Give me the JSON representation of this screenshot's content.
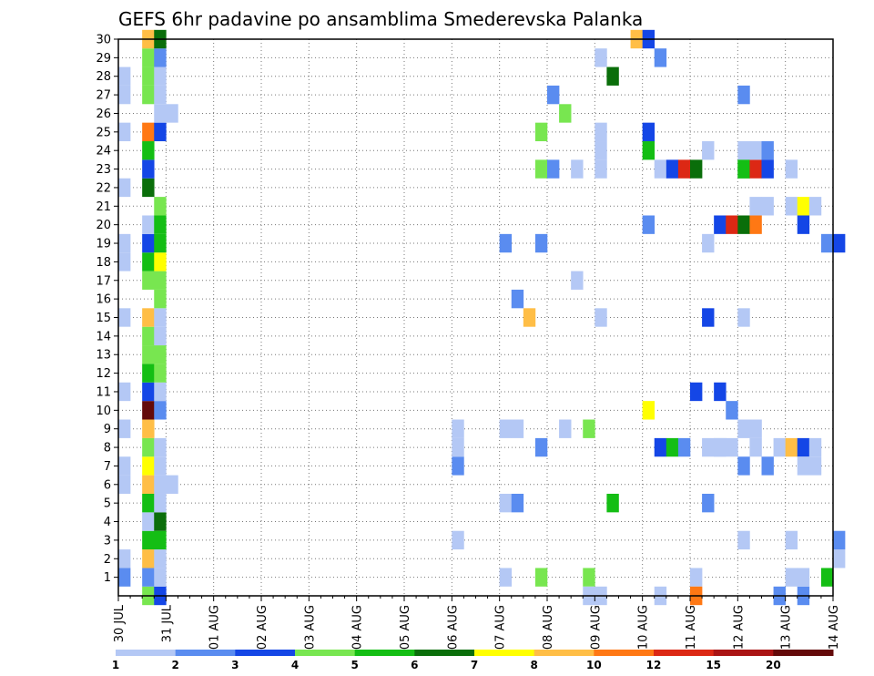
{
  "chart_data": {
    "type": "heatmap",
    "title": "GEFS 6hr padavine po ansamblima Smederevska Palanka",
    "x_tick_labels": [
      "30 JUL",
      "31 JUL",
      "01 AUG",
      "02 AUG",
      "03 AUG",
      "04 AUG",
      "05 AUG",
      "06 AUG",
      "07 AUG",
      "08 AUG",
      "09 AUG",
      "10 AUG",
      "11 AUG",
      "12 AUG",
      "13 AUG",
      "14 AUG"
    ],
    "x_unit": "6-hour step from 30 JUL 00Z",
    "x_range": [
      0,
      60
    ],
    "y_tick_labels": [
      "1",
      "2",
      "3",
      "4",
      "5",
      "6",
      "7",
      "8",
      "9",
      "10",
      "11",
      "12",
      "13",
      "14",
      "15",
      "16",
      "17",
      "18",
      "19",
      "20",
      "21",
      "22",
      "23",
      "24",
      "25",
      "26",
      "27",
      "28",
      "29",
      "30"
    ],
    "y_range": [
      0,
      30
    ],
    "grid": true,
    "colorbar": {
      "labels": [
        "1",
        "2",
        "3",
        "4",
        "5",
        "6",
        "7",
        "8",
        "10",
        "12",
        "15",
        "20"
      ],
      "colors": [
        "#b4c8f5",
        "#5a8cf0",
        "#1446e6",
        "#78e650",
        "#14be14",
        "#0a6e0a",
        "#ffff00",
        "#ffbe46",
        "#ff7814",
        "#dc2814",
        "#aa1414",
        "#640a0a"
      ]
    },
    "cells_note": "each cell: [time step, member, color index (0=#b4c8f5 ... 11=#640a0a)]",
    "cells": [
      [
        0,
        1,
        1
      ],
      [
        0,
        2,
        0
      ],
      [
        0,
        7,
        0
      ],
      [
        0,
        6,
        0
      ],
      [
        0,
        9,
        0
      ],
      [
        0,
        11,
        0
      ],
      [
        0,
        15,
        0
      ],
      [
        0,
        18,
        0
      ],
      [
        0,
        19,
        0
      ],
      [
        0,
        22,
        0
      ],
      [
        0,
        25,
        0
      ],
      [
        0,
        27,
        0
      ],
      [
        0,
        28,
        0
      ],
      [
        2,
        0,
        3
      ],
      [
        2,
        1,
        1
      ],
      [
        2,
        2,
        7
      ],
      [
        2,
        3,
        4
      ],
      [
        2,
        4,
        0
      ],
      [
        2,
        5,
        4
      ],
      [
        2,
        6,
        7
      ],
      [
        2,
        7,
        6
      ],
      [
        2,
        8,
        3
      ],
      [
        2,
        9,
        7
      ],
      [
        2,
        10,
        11
      ],
      [
        2,
        11,
        2
      ],
      [
        2,
        12,
        4
      ],
      [
        2,
        13,
        3
      ],
      [
        2,
        14,
        3
      ],
      [
        2,
        15,
        7
      ],
      [
        2,
        17,
        3
      ],
      [
        2,
        18,
        4
      ],
      [
        2,
        19,
        2
      ],
      [
        2,
        20,
        0
      ],
      [
        2,
        22,
        5
      ],
      [
        2,
        23,
        2
      ],
      [
        2,
        24,
        4
      ],
      [
        2,
        25,
        8
      ],
      [
        2,
        27,
        3
      ],
      [
        2,
        28,
        3
      ],
      [
        2,
        29,
        3
      ],
      [
        2,
        30,
        7
      ],
      [
        3,
        0,
        2
      ],
      [
        3,
        1,
        0
      ],
      [
        3,
        2,
        0
      ],
      [
        3,
        3,
        4
      ],
      [
        3,
        4,
        5
      ],
      [
        3,
        5,
        0
      ],
      [
        3,
        6,
        0
      ],
      [
        3,
        7,
        0
      ],
      [
        3,
        8,
        0
      ],
      [
        3,
        10,
        1
      ],
      [
        3,
        11,
        0
      ],
      [
        3,
        12,
        3
      ],
      [
        3,
        13,
        3
      ],
      [
        3,
        14,
        0
      ],
      [
        3,
        15,
        0
      ],
      [
        3,
        16,
        3
      ],
      [
        3,
        17,
        3
      ],
      [
        3,
        18,
        6
      ],
      [
        3,
        19,
        4
      ],
      [
        3,
        20,
        4
      ],
      [
        3,
        21,
        3
      ],
      [
        3,
        25,
        2
      ],
      [
        3,
        26,
        0
      ],
      [
        3,
        27,
        0
      ],
      [
        3,
        28,
        0
      ],
      [
        3,
        29,
        1
      ],
      [
        3,
        30,
        5
      ],
      [
        4,
        6,
        0
      ],
      [
        4,
        26,
        0
      ],
      [
        28,
        7,
        1
      ],
      [
        28,
        8,
        0
      ],
      [
        28,
        9,
        0
      ],
      [
        28,
        3,
        0
      ],
      [
        32,
        1,
        0
      ],
      [
        32,
        5,
        0
      ],
      [
        32,
        9,
        0
      ],
      [
        32,
        19,
        1
      ],
      [
        33,
        5,
        1
      ],
      [
        33,
        9,
        0
      ],
      [
        33,
        16,
        1
      ],
      [
        34,
        15,
        7
      ],
      [
        35,
        1,
        3
      ],
      [
        35,
        8,
        1
      ],
      [
        35,
        23,
        3
      ],
      [
        35,
        25,
        3
      ],
      [
        35,
        19,
        1
      ],
      [
        36,
        23,
        1
      ],
      [
        36,
        27,
        1
      ],
      [
        37,
        26,
        3
      ],
      [
        37,
        9,
        0
      ],
      [
        38,
        23,
        0
      ],
      [
        38,
        17,
        0
      ],
      [
        39,
        1,
        3
      ],
      [
        39,
        9,
        3
      ],
      [
        39,
        0,
        0
      ],
      [
        40,
        0,
        0
      ],
      [
        40,
        15,
        0
      ],
      [
        40,
        23,
        0
      ],
      [
        40,
        24,
        0
      ],
      [
        40,
        25,
        0
      ],
      [
        40,
        29,
        0
      ],
      [
        41,
        5,
        4
      ],
      [
        41,
        28,
        5
      ],
      [
        43,
        30,
        7
      ],
      [
        44,
        10,
        6
      ],
      [
        44,
        20,
        1
      ],
      [
        44,
        24,
        4
      ],
      [
        44,
        25,
        2
      ],
      [
        44,
        30,
        2
      ],
      [
        45,
        8,
        2
      ],
      [
        45,
        23,
        0
      ],
      [
        45,
        0,
        0
      ],
      [
        45,
        29,
        1
      ],
      [
        46,
        8,
        4
      ],
      [
        46,
        23,
        2
      ],
      [
        47,
        8,
        1
      ],
      [
        47,
        23,
        9
      ],
      [
        48,
        11,
        2
      ],
      [
        48,
        23,
        5
      ],
      [
        48,
        1,
        0
      ],
      [
        48,
        0,
        8
      ],
      [
        49,
        5,
        1
      ],
      [
        49,
        8,
        0
      ],
      [
        49,
        15,
        2
      ],
      [
        49,
        24,
        0
      ],
      [
        49,
        19,
        0
      ],
      [
        50,
        8,
        0
      ],
      [
        50,
        8,
        0
      ],
      [
        50,
        11,
        2
      ],
      [
        50,
        20,
        2
      ],
      [
        51,
        8,
        0
      ],
      [
        51,
        10,
        1
      ],
      [
        51,
        20,
        9
      ],
      [
        52,
        3,
        0
      ],
      [
        52,
        7,
        1
      ],
      [
        52,
        9,
        0
      ],
      [
        52,
        15,
        0
      ],
      [
        52,
        23,
        4
      ],
      [
        52,
        24,
        0
      ],
      [
        52,
        20,
        5
      ],
      [
        52,
        27,
        1
      ],
      [
        52,
        23,
        4
      ],
      [
        53,
        8,
        0
      ],
      [
        53,
        9,
        0
      ],
      [
        53,
        23,
        9
      ],
      [
        53,
        24,
        0
      ],
      [
        53,
        20,
        8
      ],
      [
        53,
        21,
        0
      ],
      [
        54,
        7,
        1
      ],
      [
        54,
        24,
        1
      ],
      [
        54,
        23,
        2
      ],
      [
        54,
        21,
        0
      ],
      [
        55,
        8,
        0
      ],
      [
        55,
        0,
        1
      ],
      [
        56,
        1,
        0
      ],
      [
        56,
        3,
        0
      ],
      [
        56,
        21,
        0
      ],
      [
        56,
        23,
        0
      ],
      [
        56,
        8,
        7
      ],
      [
        57,
        0,
        1
      ],
      [
        57,
        1,
        0
      ],
      [
        57,
        8,
        2
      ],
      [
        57,
        7,
        0
      ],
      [
        57,
        21,
        6
      ],
      [
        57,
        20,
        2
      ],
      [
        58,
        7,
        0
      ],
      [
        58,
        21,
        0
      ],
      [
        58,
        8,
        0
      ],
      [
        59,
        1,
        4
      ],
      [
        59,
        19,
        1
      ],
      [
        60,
        2,
        0
      ],
      [
        60,
        3,
        1
      ],
      [
        60,
        19,
        2
      ]
    ]
  }
}
